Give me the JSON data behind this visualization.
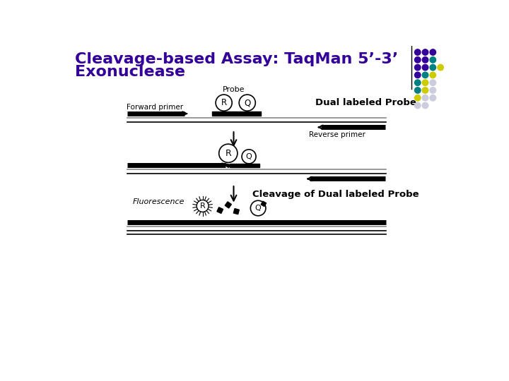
{
  "title_line1": "Cleavage-based Assay: TaqMan 5’-3’",
  "title_line2": "Exonuclease",
  "title_color": "#330099",
  "title_fontsize": 16,
  "bg_color": "#ffffff",
  "dot_colors": [
    [
      "#330099",
      "#330099",
      "#330099"
    ],
    [
      "#330099",
      "#330099",
      "#008080"
    ],
    [
      "#330099",
      "#330099",
      "#008080",
      "#cccc00"
    ],
    [
      "#330099",
      "#008080",
      "#cccc00"
    ],
    [
      "#008080",
      "#cccc00",
      "#ccccdd"
    ],
    [
      "#008080",
      "#cccc00",
      "#ccccdd"
    ],
    [
      "#cccc00",
      "#ccccdd",
      "#ccccdd"
    ],
    [
      "#ccccdd",
      "#ccccdd"
    ]
  ],
  "label_dual": "Dual labeled Probe",
  "label_cleavage": "Cleavage of Dual labeled Probe",
  "label_probe": "Probe",
  "label_forward": "Forward primer",
  "label_reverse": "Reverse primer",
  "label_fluorescence": "Fluorescence"
}
